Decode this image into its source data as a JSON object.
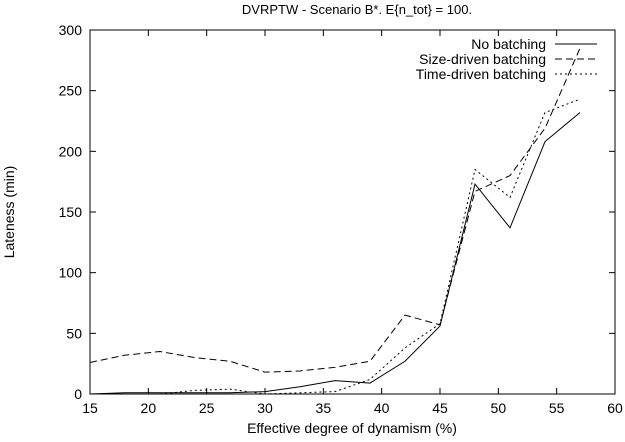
{
  "chart_data": {
    "type": "line",
    "title": "DVRPTW - Scenario B*. E{n_tot} = 100.",
    "xlabel": "Effective degree of dynamism (%)",
    "ylabel": "Lateness (min)",
    "xlim": [
      15,
      60
    ],
    "ylim": [
      0,
      300
    ],
    "xticks": [
      "15",
      "20",
      "25",
      "30",
      "35",
      "40",
      "45",
      "50",
      "55",
      "60"
    ],
    "yticks": [
      "0",
      "50",
      "100",
      "150",
      "200",
      "250",
      "300"
    ],
    "grid": false,
    "legend_position": "top-right",
    "series": [
      {
        "name": "No batching",
        "style": "solid",
        "color": "#000000",
        "x": [
          15,
          18,
          21,
          24,
          27,
          30,
          33,
          36,
          39,
          42,
          45,
          48,
          51,
          54,
          57
        ],
        "y": [
          0,
          1,
          1,
          1,
          1,
          2,
          6,
          11,
          9,
          27,
          56,
          173,
          137,
          208,
          232
        ]
      },
      {
        "name": "Size-driven batching",
        "style": "dashed",
        "color": "#000000",
        "x": [
          15,
          18,
          21,
          24,
          27,
          30,
          33,
          36,
          39,
          42,
          45,
          48,
          51,
          54,
          57
        ],
        "y": [
          26,
          32,
          35,
          30,
          27,
          18,
          19,
          22,
          27,
          65,
          57,
          167,
          180,
          219,
          285
        ]
      },
      {
        "name": "Time-driven batching",
        "style": "dotted",
        "color": "#000000",
        "x": [
          15,
          18,
          21,
          24,
          27,
          30,
          33,
          36,
          39,
          42,
          45,
          48,
          51,
          54,
          57
        ],
        "y": [
          0,
          0,
          0,
          3,
          4,
          0,
          1,
          2,
          12,
          38,
          58,
          185,
          162,
          232,
          243
        ]
      }
    ]
  }
}
